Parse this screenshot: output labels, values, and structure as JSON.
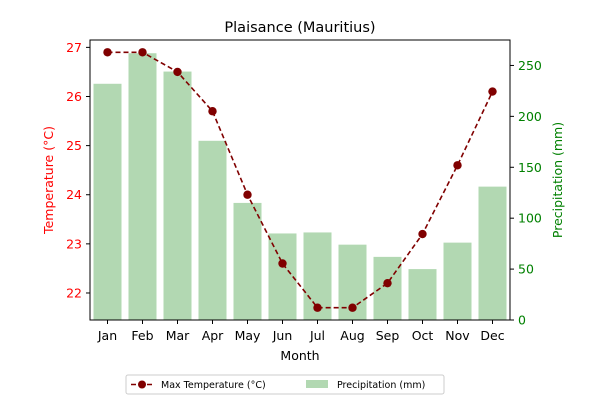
{
  "chart_data": {
    "type": "bar",
    "title": "Plaisance (Mauritius)",
    "xlabel": "Month",
    "categories": [
      "Jan",
      "Feb",
      "Mar",
      "Apr",
      "May",
      "Jun",
      "Jul",
      "Aug",
      "Sep",
      "Oct",
      "Nov",
      "Dec"
    ],
    "left_axis": {
      "label": "Temperature (°C)",
      "color": "#ff0000",
      "ylim": [
        21.45,
        27.15
      ],
      "ticks": [
        22,
        23,
        24,
        25,
        26,
        27
      ]
    },
    "right_axis": {
      "label": "Precipitation (mm)",
      "color": "#008000",
      "ylim": [
        0,
        275
      ],
      "ticks": [
        0,
        50,
        100,
        150,
        200,
        250
      ]
    },
    "series": [
      {
        "name": "Max Temperature (°C)",
        "type": "line",
        "axis": "left",
        "color": "#800000",
        "line_style": "dashed",
        "marker": "circle",
        "values": [
          26.9,
          26.9,
          26.5,
          25.7,
          24.0,
          22.6,
          21.7,
          21.7,
          22.2,
          23.2,
          24.6,
          26.1
        ]
      },
      {
        "name": "Precipitation (mm)",
        "type": "bar",
        "axis": "right",
        "color": "#b2d8b2",
        "values": [
          232,
          262,
          244,
          176,
          115,
          85,
          86,
          74,
          62,
          50,
          76,
          131
        ]
      }
    ],
    "grid": false,
    "legend": {
      "placement": "bottom-center",
      "columns": 2
    }
  }
}
